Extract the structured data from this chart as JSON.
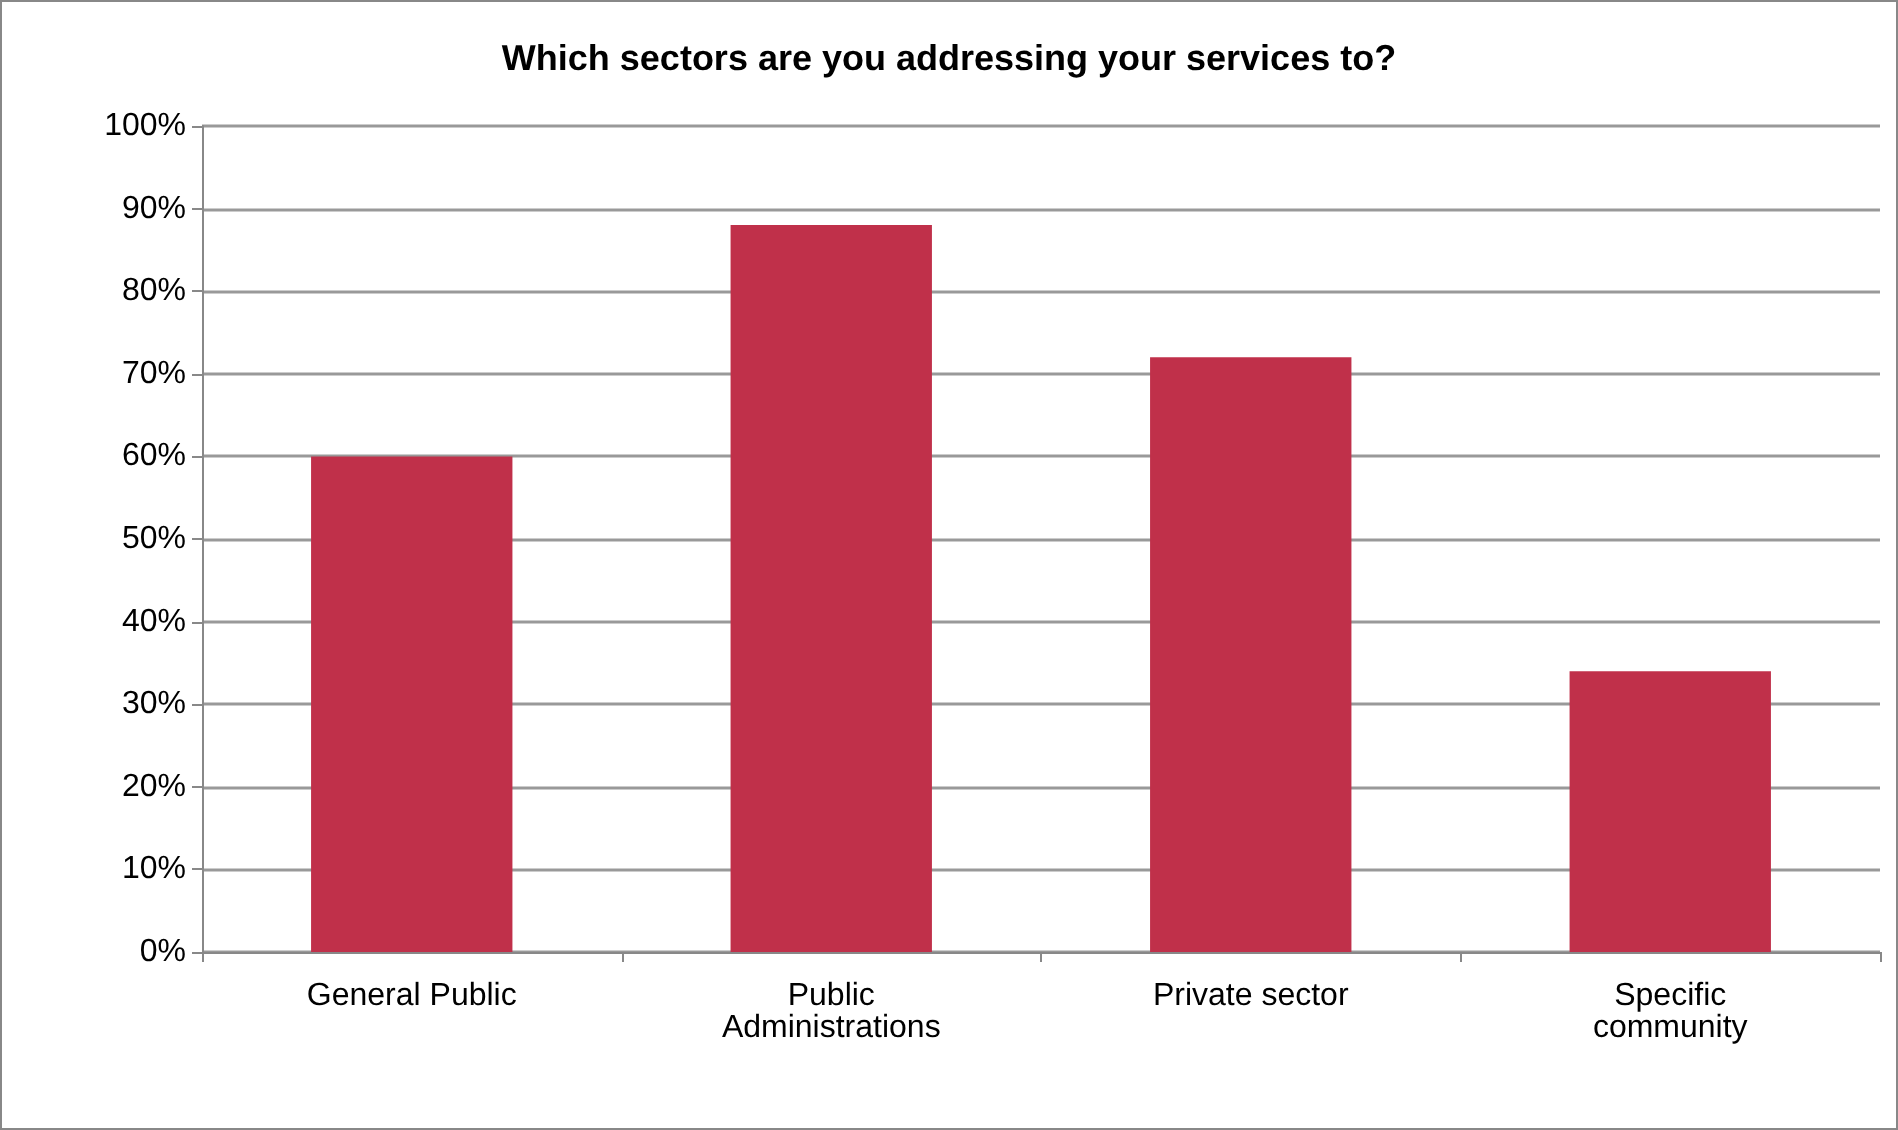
{
  "chart_data": {
    "type": "bar",
    "title": "Which sectors are you addressing your services to?",
    "categories": [
      "General Public",
      "Public Administrations",
      "Private sector",
      "Specific community"
    ],
    "values": [
      60,
      88,
      72,
      34
    ],
    "color": "#c0304a",
    "ylim": [
      0,
      100
    ],
    "yticks": [
      {
        "value": 0,
        "label": "0%"
      },
      {
        "value": 10,
        "label": "10%"
      },
      {
        "value": 20,
        "label": "20%"
      },
      {
        "value": 30,
        "label": "30%"
      },
      {
        "value": 40,
        "label": "40%"
      },
      {
        "value": 50,
        "label": "50%"
      },
      {
        "value": 60,
        "label": "60%"
      },
      {
        "value": 70,
        "label": "70%"
      },
      {
        "value": 80,
        "label": "80%"
      },
      {
        "value": 90,
        "label": "90%"
      },
      {
        "value": 100,
        "label": "100%"
      }
    ],
    "grid": true
  }
}
